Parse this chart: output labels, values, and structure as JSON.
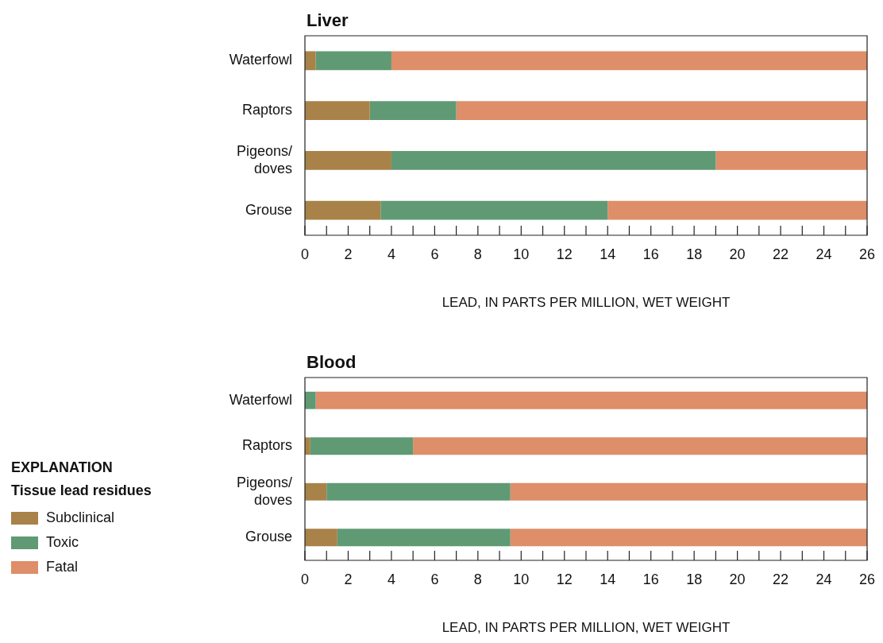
{
  "chart_data": [
    {
      "type": "bar",
      "title": "Liver",
      "xlabel": "LEAD, IN PARTS PER MILLION, WET WEIGHT",
      "orientation": "horizontal",
      "stacked": true,
      "legend": false,
      "categories": [
        "Waterfowl",
        "Raptors",
        "Pigeons/doves",
        "Grouse"
      ],
      "series": [
        {
          "color": "#a88248",
          "values": [
            0.5,
            3,
            4,
            3.5
          ]
        },
        {
          "color": "#5f9a74",
          "values": [
            3.5,
            4,
            15,
            10.5
          ]
        },
        {
          "color": "#de8e68",
          "values": [
            22,
            19,
            7,
            12
          ]
        }
      ],
      "xlim": [
        0,
        26
      ],
      "xticks": [
        0,
        {
          "value": 1,
          "label": null
        },
        2,
        {
          "value": 3,
          "label": null
        },
        4,
        {
          "value": 5,
          "label": null
        },
        6,
        {
          "value": 7,
          "label": null
        },
        8,
        {
          "value": 9,
          "label": null
        },
        10,
        {
          "value": 11,
          "label": null
        },
        12,
        {
          "value": 13,
          "label": null
        },
        14,
        {
          "value": 15,
          "label": null
        },
        16,
        {
          "value": 17,
          "label": null
        },
        18,
        {
          "value": 19,
          "label": null
        },
        20,
        {
          "value": 21,
          "label": null
        },
        22,
        {
          "value": 23,
          "label": null
        },
        24,
        {
          "value": 25,
          "label": null
        },
        26
      ]
    },
    {
      "type": "bar",
      "title": "Blood",
      "xlabel": "LEAD, IN PARTS PER MILLION, WET WEIGHT",
      "orientation": "horizontal",
      "stacked": true,
      "legend": "left",
      "legend_title": "Tissue lead residues",
      "annotations": [
        "EXPLANATION"
      ],
      "categories": [
        "Waterfowl",
        "Raptors",
        "Pigeons/doves",
        "Grouse"
      ],
      "series": [
        {
          "name": "Subclinical",
          "color": "#a88248",
          "values": [
            0,
            0.25,
            1,
            1.5
          ]
        },
        {
          "name": "Toxic",
          "color": "#5f9a74",
          "values": [
            0.5,
            4.75,
            8.5,
            8
          ]
        },
        {
          "name": "Fatal",
          "color": "#de8e68",
          "values": [
            25.5,
            21,
            16.5,
            16.5
          ]
        }
      ],
      "xlim": [
        0,
        26
      ],
      "xticks": [
        0,
        {
          "value": 1,
          "label": null
        },
        2,
        {
          "value": 3,
          "label": null
        },
        4,
        {
          "value": 5,
          "label": null
        },
        6,
        {
          "value": 7,
          "label": null
        },
        8,
        {
          "value": 9,
          "label": null
        },
        10,
        {
          "value": 11,
          "label": null
        },
        12,
        {
          "value": 13,
          "label": null
        },
        14,
        {
          "value": 15,
          "label": null
        },
        16,
        {
          "value": 17,
          "label": null
        },
        18,
        {
          "value": 19,
          "label": null
        },
        20,
        {
          "value": 21,
          "label": null
        },
        22,
        {
          "value": 23,
          "label": null
        },
        24,
        {
          "value": 25,
          "label": null
        },
        26
      ]
    }
  ]
}
